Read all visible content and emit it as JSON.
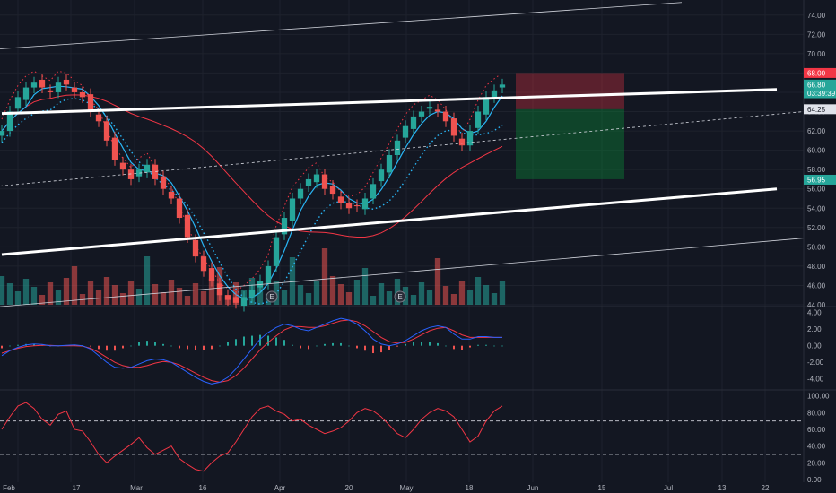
{
  "chart_data": [
    {
      "type": "candlestick",
      "panel": "price",
      "x_ticks": [
        "Feb",
        "17",
        "Mar",
        "16",
        "Apr",
        "20",
        "May",
        "18",
        "Jun",
        "15",
        "Jul",
        "13",
        "22"
      ],
      "y_ticks": [
        "74.00",
        "72.00",
        "70.00",
        "68.00",
        "66.00",
        "64.00",
        "62.00",
        "60.00",
        "58.00",
        "56.00",
        "54.00",
        "52.00",
        "50.00",
        "48.00",
        "46.00",
        "44.00"
      ],
      "ylim": [
        44,
        75
      ],
      "price_badges": [
        {
          "label": "68.00",
          "value": 68.0,
          "color": "#f23645"
        },
        {
          "label": "66.80",
          "value": 66.8,
          "color": "#26a69a"
        },
        {
          "label": "03:39:39",
          "value": 65.9,
          "color": "#26a69a"
        },
        {
          "label": "64.25",
          "value": 64.25,
          "color": "#e0e3eb"
        },
        {
          "label": "56.95",
          "value": 56.95,
          "color": "#26a69a"
        }
      ],
      "close_path": [
        62,
        64,
        65.5,
        66.5,
        67,
        66.5,
        66,
        67,
        66.8,
        66,
        65.5,
        64,
        63,
        61,
        59,
        58,
        57,
        58,
        58.5,
        57,
        56,
        55,
        53,
        51,
        49,
        47.5,
        46.5,
        45,
        44.5,
        44.2,
        44.8,
        45.5,
        46.5,
        48,
        51,
        53,
        55,
        56,
        57,
        57.5,
        56,
        55.5,
        54.5,
        54,
        54.2,
        55,
        56.5,
        58,
        59.5,
        61,
        62.5,
        63.5,
        64,
        64.5,
        64,
        63,
        61.5,
        60.5,
        62,
        64,
        65.5,
        66.2,
        66.8
      ],
      "upper_channel_line": {
        "start": [
          0,
          63.8
        ],
        "end": [
          96,
          66.3
        ]
      },
      "lower_channel_line": {
        "start": [
          0,
          49.2
        ],
        "end": [
          96,
          56.0
        ]
      },
      "position_box": {
        "entry": 64.25,
        "target_top": 68.0,
        "stop_bottom": 57.0
      }
    },
    {
      "type": "line",
      "panel": "macd",
      "y_ticks": [
        "4.00",
        "2.00",
        "0.00",
        "-2.00",
        "-4.00"
      ],
      "ylim": [
        -5,
        4.5
      ],
      "series": [
        {
          "values": [
            -1.2,
            -0.6,
            -0.2,
            0.1,
            0.2,
            0.15,
            0.0,
            0.0,
            0.05,
            0.1,
            0.0,
            -0.4,
            -1.2,
            -2.0,
            -2.6,
            -2.7,
            -2.6,
            -2.2,
            -1.8,
            -1.6,
            -1.7,
            -2.0,
            -2.6,
            -3.2,
            -3.8,
            -4.3,
            -4.6,
            -4.4,
            -3.8,
            -2.8,
            -1.6,
            -0.4,
            0.8,
            1.6,
            2.2,
            2.6,
            2.4,
            2.0,
            1.8,
            2.2,
            2.6,
            3.0,
            3.3,
            3.1,
            2.6,
            1.8,
            0.8,
            0.2,
            0.0,
            0.2,
            0.6,
            1.2,
            1.8,
            2.2,
            2.4,
            2.2,
            1.4,
            0.8,
            0.8,
            1.1,
            1.1,
            1.0,
            1.0
          ],
          "color": "#2962ff"
        },
        {
          "values": [
            -0.9,
            -0.6,
            -0.3,
            -0.1,
            0.0,
            0.05,
            0.05,
            0.0,
            0.0,
            0.0,
            -0.05,
            -0.3,
            -0.8,
            -1.4,
            -2.0,
            -2.4,
            -2.6,
            -2.6,
            -2.4,
            -2.1,
            -1.9,
            -2.0,
            -2.3,
            -2.8,
            -3.3,
            -3.8,
            -4.2,
            -4.4,
            -4.2,
            -3.6,
            -2.7,
            -1.6,
            -0.5,
            0.4,
            1.2,
            1.9,
            2.3,
            2.3,
            2.2,
            2.2,
            2.4,
            2.7,
            3.0,
            3.1,
            2.9,
            2.4,
            1.7,
            1.0,
            0.5,
            0.3,
            0.4,
            0.8,
            1.3,
            1.8,
            2.1,
            2.2,
            1.8,
            1.3,
            1.0,
            1.0,
            1.0,
            1.0,
            1.0
          ],
          "color": "#f23645"
        }
      ]
    },
    {
      "type": "line",
      "panel": "rsi",
      "y_ticks": [
        "100.00",
        "80.00",
        "60.00",
        "40.00",
        "20.00",
        "0.00"
      ],
      "ylim": [
        0,
        105
      ],
      "levels": [
        70,
        30
      ],
      "series": [
        {
          "values": [
            60,
            75,
            88,
            92,
            85,
            72,
            65,
            78,
            82,
            60,
            58,
            45,
            30,
            20,
            28,
            35,
            42,
            50,
            38,
            30,
            35,
            40,
            25,
            18,
            12,
            10,
            20,
            28,
            32,
            45,
            60,
            75,
            85,
            88,
            82,
            78,
            70,
            72,
            65,
            60,
            55,
            58,
            62,
            70,
            80,
            85,
            82,
            75,
            65,
            55,
            50,
            60,
            72,
            80,
            85,
            82,
            75,
            60,
            45,
            52,
            70,
            82,
            88
          ],
          "color": "#f23645"
        }
      ]
    }
  ]
}
